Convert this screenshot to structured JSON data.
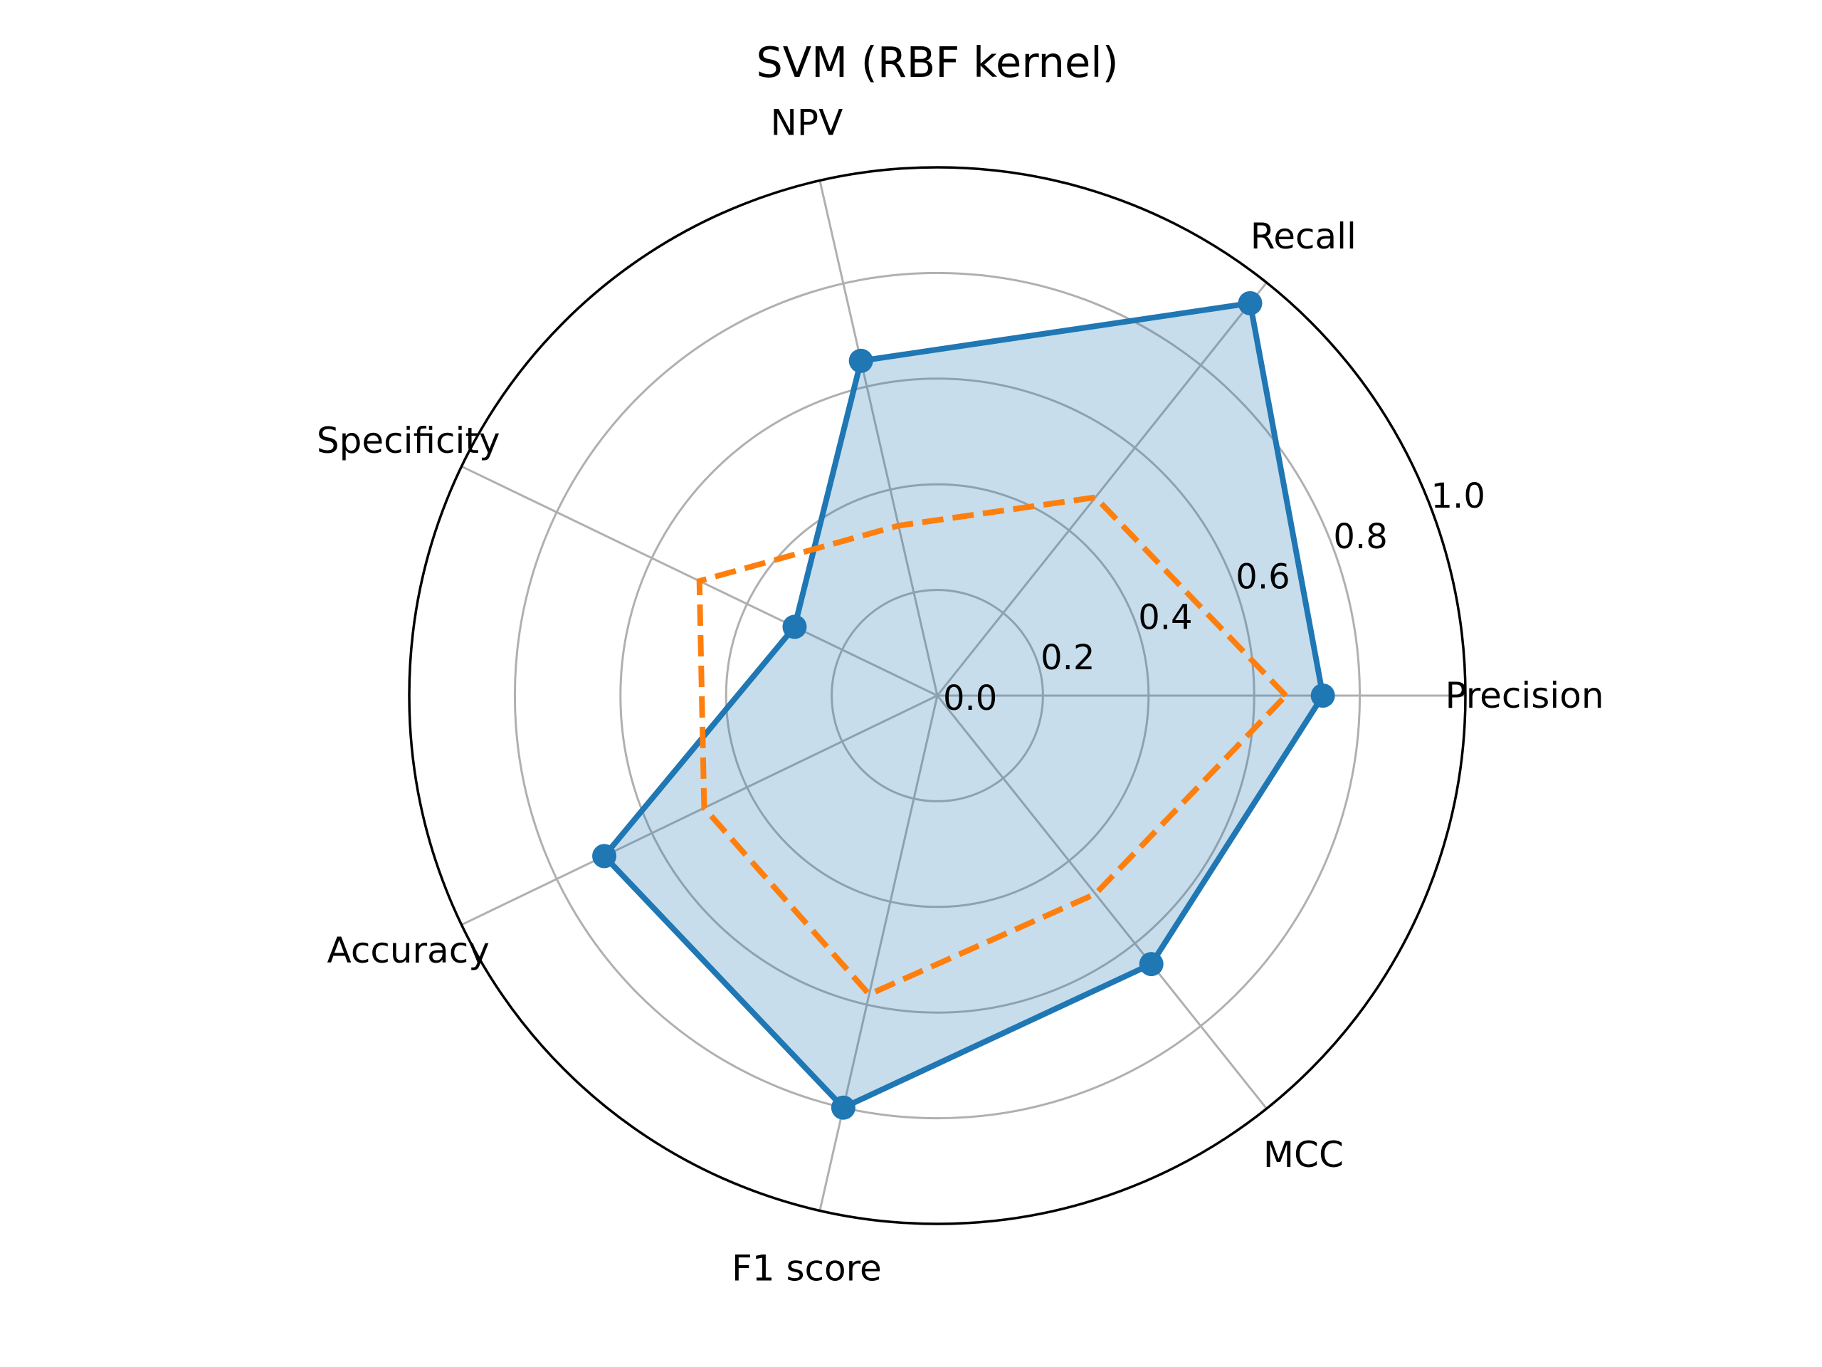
{
  "chart_data": {
    "type": "radar",
    "title": "SVM (RBF kernel)",
    "categories": [
      "Precision",
      "Recall",
      "NPV",
      "Specificity",
      "Accuracy",
      "F1 score",
      "MCC"
    ],
    "rlim": [
      0,
      1.0
    ],
    "rticks": [
      0.0,
      0.2,
      0.4,
      0.6,
      0.8,
      1.0
    ],
    "rtick_labels": [
      "0.0",
      "0.2",
      "0.4",
      "0.6",
      "0.8",
      "1.0"
    ],
    "grid": true,
    "series": [
      {
        "values": [
          0.73,
          0.95,
          0.65,
          0.3,
          0.7,
          0.8,
          0.65
        ],
        "color": "#1f77b4",
        "style": "solid",
        "markers": true,
        "fill": true
      },
      {
        "values": [
          0.66,
          0.48,
          0.33,
          0.5,
          0.49,
          0.58,
          0.48
        ],
        "color": "#ff7f0e",
        "style": "dashed",
        "markers": false,
        "fill": false
      }
    ]
  }
}
